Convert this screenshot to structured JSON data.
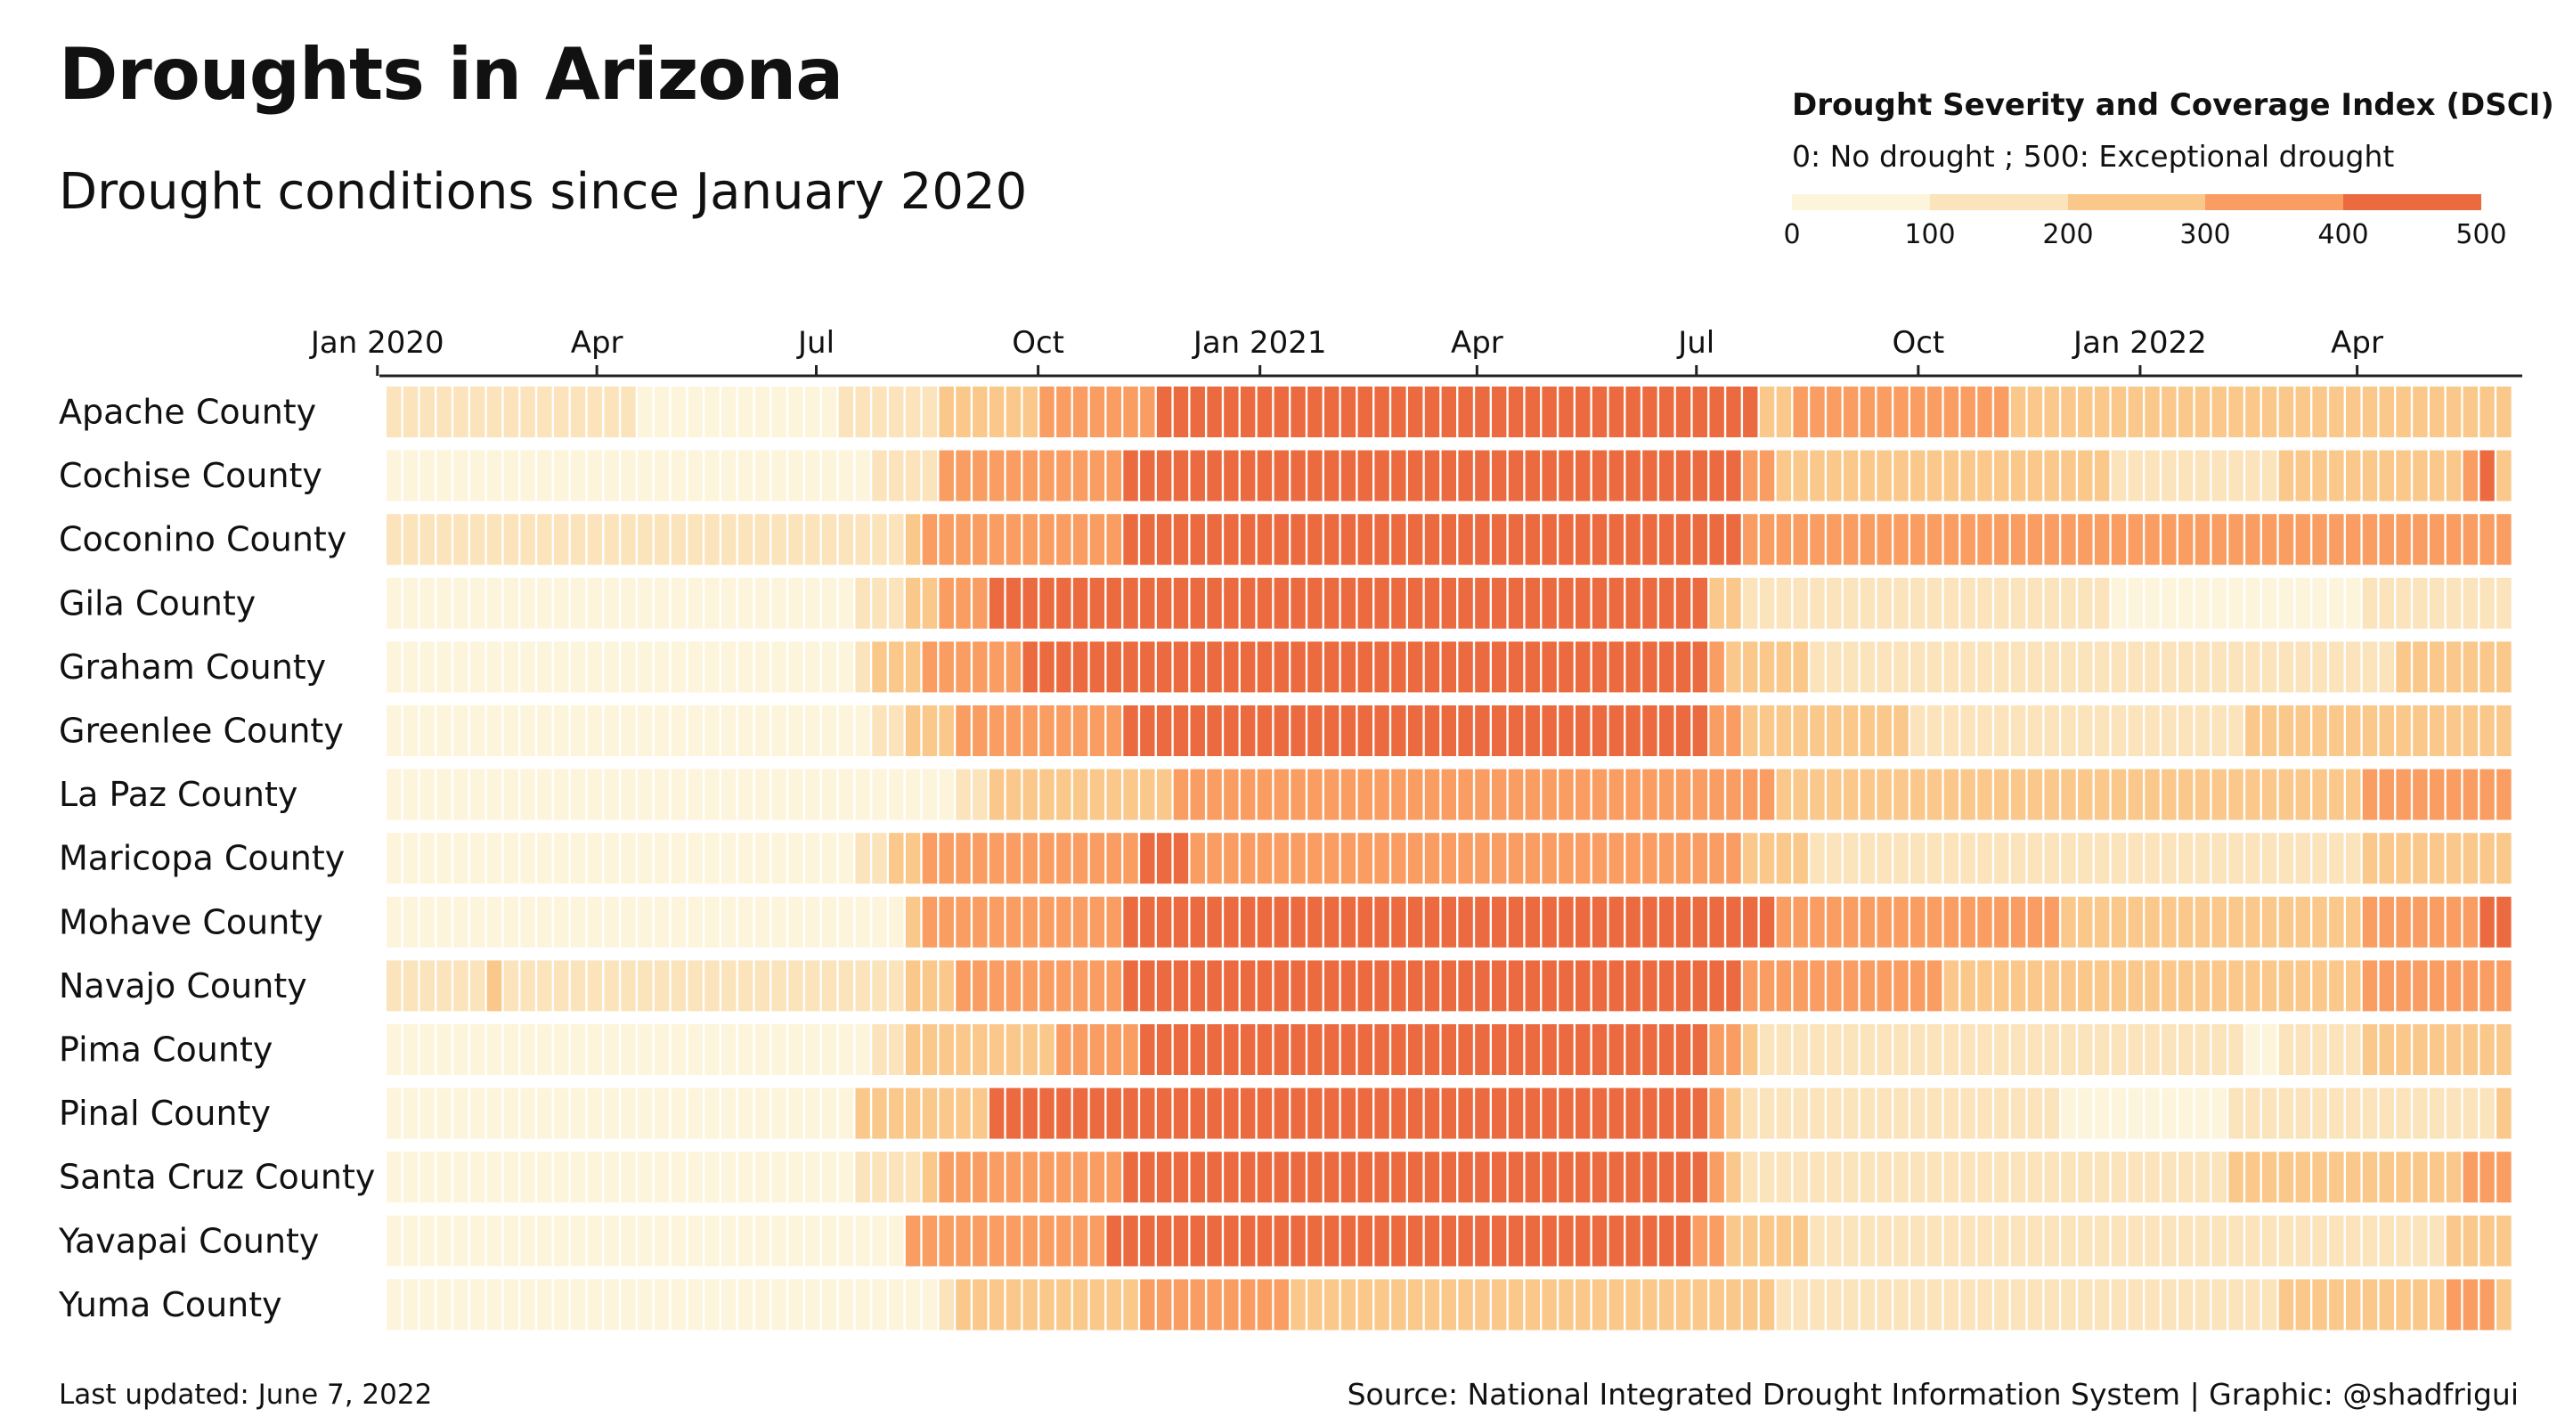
{
  "chart_data": {
    "type": "heatmap",
    "title": "Droughts in Arizona",
    "subtitle": "Drought conditions since January 2020",
    "legend": {
      "title": "Drought Severity and Coverage Index (DSCI)",
      "subtitle": "0: No drought ; 500: Exceptional drought",
      "ticks": [
        "0",
        "100",
        "200",
        "300",
        "400",
        "500"
      ],
      "bins": [
        0,
        100,
        200,
        300,
        400,
        500
      ],
      "colors": [
        "#fdf4dc",
        "#fbe3bb",
        "#fac88a",
        "#f99d62",
        "#ec6a3f"
      ],
      "placement": "top-right"
    },
    "x_ticks": [
      "Jan 2020",
      "Apr",
      "Jul",
      "Oct",
      "Jan 2021",
      "Apr",
      "Jul",
      "Oct",
      "Jan 2022",
      "Apr"
    ],
    "x_start": "2020-01-07",
    "x_end": "2022-06-07",
    "week_count": 127,
    "counties": [
      {
        "name": "Apache County",
        "levels": "1111111111111110000000000001111112222223333333444444444444444444444444444444444444223333333333333222222222222222222222222222222222"
      },
      {
        "name": "Cochise County",
        "levels": "0000000000000000000000000000011113333333333344444444444444444444444444444444444443322222222222222222222111111111122222222222342"
      },
      {
        "name": "Coconino County",
        "levels": "1111111111111111111111111111111233333333333344444444444444444444444444444444444443333333333333333333333333333333333333333333333"
      },
      {
        "name": "Gila County",
        "levels": "0000000000000000000000000000111223334444444444444444444444444444444444444444444221111111111111111111111000000000000000111111111"
      },
      {
        "name": "Graham County",
        "levels": "0000000000000000000000000000122233333344444444444444444444444444444444444444444322222111111111111111111111111111111111112222222"
      },
      {
        "name": "Greenlee County",
        "levels": "0000000000000000000000000000011222333333333344444444444444444444444444444444444332222222222111111111111111111112222222222222222"
      },
      {
        "name": "La Paz County",
        "levels": "0000000000000000000000000000000000112222222222233333333333333333333333333333333333322222222222222222222222222222222222333333333"
      },
      {
        "name": "Maricopa County",
        "levels": "0000000000000000000000000000112233333333333334443333333333333333333333333333333332222111111111111111111111111111111111222222222"
      },
      {
        "name": "Mohave County",
        "levels": "0000000000000000000000000000000233333333333344444444444444444444444444444444444444433333333333333333222222222222222222333333344"
      },
      {
        "name": "Navajo County",
        "levels": "1111112111111111111111111111111222333333333344444444444444444444444444444444444443333333333332222222222222222222222222333333333"
      },
      {
        "name": "Pima County",
        "levels": "0000000000000000000000000000011222222222333334444444444444444444444444444444444332111111111111111111111111111110011111222222222"
      },
      {
        "name": "Pinal County",
        "levels": "0000000000000000000000000000222222224444444444444444444444444444444444444444444321111111111111111111000000000011111111111111112"
      },
      {
        "name": "Santa Cruz County",
        "levels": "0000000000000000000000000000111123333333333344444444444444444444444444444444444321111111111111111111111111111122222222222222333"
      },
      {
        "name": "Yavapai County",
        "levels": "0000000000000000000000000000000333333333333444444444444444444444444444444444443322222111111111111111111111111111111111111112222"
      },
      {
        "name": "Yuma County",
        "levels": "0000000000000000000000000000000001222222222223333333332222222222222222222222222222211111111111111111111111111111122222222223332"
      }
    ]
  },
  "footer": {
    "last_updated": "Last updated: June 7, 2022",
    "source": "Source: National Integrated Drought Information System | Graphic: @shadfrigui"
  }
}
